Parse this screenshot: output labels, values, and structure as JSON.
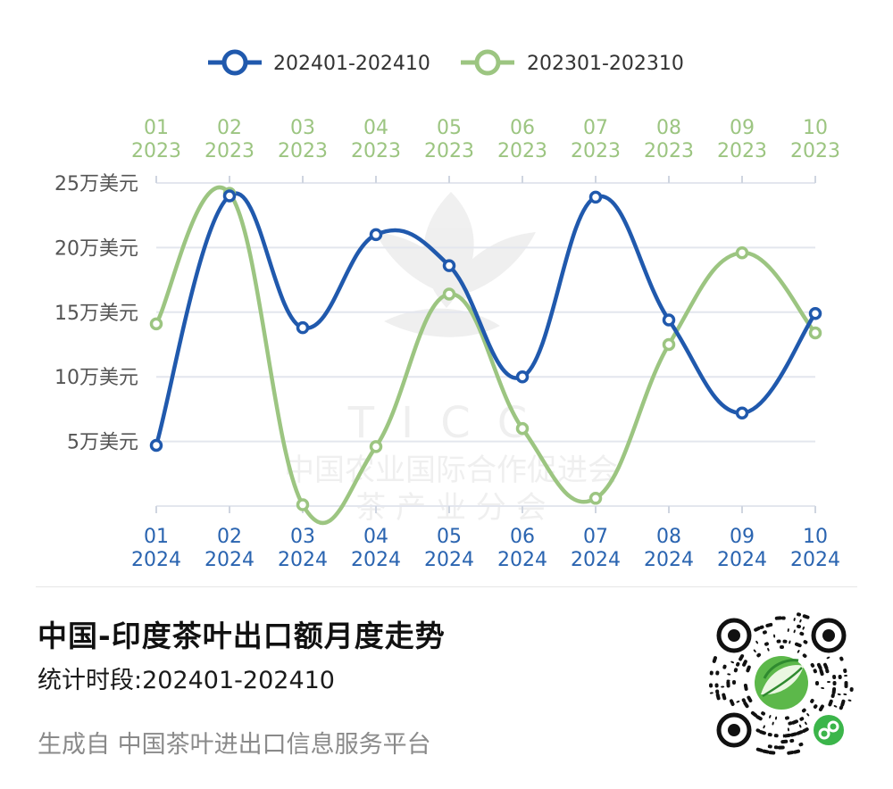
{
  "chart_data": {
    "type": "line",
    "legend_position": "top",
    "series": [
      {
        "name": "202401-202410",
        "color": "#2059ad",
        "x_labels": [
          [
            "01",
            "2024"
          ],
          [
            "02",
            "2024"
          ],
          [
            "03",
            "2024"
          ],
          [
            "04",
            "2024"
          ],
          [
            "05",
            "2024"
          ],
          [
            "06",
            "2024"
          ],
          [
            "07",
            "2024"
          ],
          [
            "08",
            "2024"
          ],
          [
            "09",
            "2024"
          ],
          [
            "10",
            "2024"
          ]
        ],
        "values": [
          4.7,
          24.0,
          13.8,
          21.0,
          18.6,
          10.0,
          23.9,
          14.4,
          7.2,
          14.9
        ],
        "axis": "bottom"
      },
      {
        "name": "202301-202310",
        "color": "#9cc581",
        "x_labels": [
          [
            "01",
            "2023"
          ],
          [
            "02",
            "2023"
          ],
          [
            "03",
            "2023"
          ],
          [
            "04",
            "2023"
          ],
          [
            "05",
            "2023"
          ],
          [
            "06",
            "2023"
          ],
          [
            "07",
            "2023"
          ],
          [
            "08",
            "2023"
          ],
          [
            "09",
            "2023"
          ],
          [
            "10",
            "2023"
          ]
        ],
        "values": [
          14.1,
          24.2,
          0.1,
          4.6,
          16.4,
          6.0,
          0.6,
          12.5,
          19.6,
          13.4
        ],
        "axis": "top"
      }
    ],
    "y_ticks": [
      {
        "value": 25,
        "label": "25万美元"
      },
      {
        "value": 20,
        "label": "20万美元"
      },
      {
        "value": 15,
        "label": "15万美元"
      },
      {
        "value": 10,
        "label": "10万美元"
      },
      {
        "value": 5,
        "label": "5万美元"
      }
    ],
    "ylim": [
      0,
      25
    ],
    "grid": true
  },
  "watermark": {
    "logo_text": "TICC",
    "org_line1": "中国农业国际合作促进会",
    "org_line2": "茶 产 业 分 会"
  },
  "footer": {
    "title": "中国-印度茶叶出口额月度走势",
    "period": "统计时段:202401-202410",
    "source": "生成自 中国茶叶进出口信息服务平台"
  },
  "qr": {
    "icon": "mini-program-qr-code",
    "logo_icon": "tea-leaf-logo-icon",
    "badge_icon": "link-icon",
    "accent": "#3bb54a"
  }
}
